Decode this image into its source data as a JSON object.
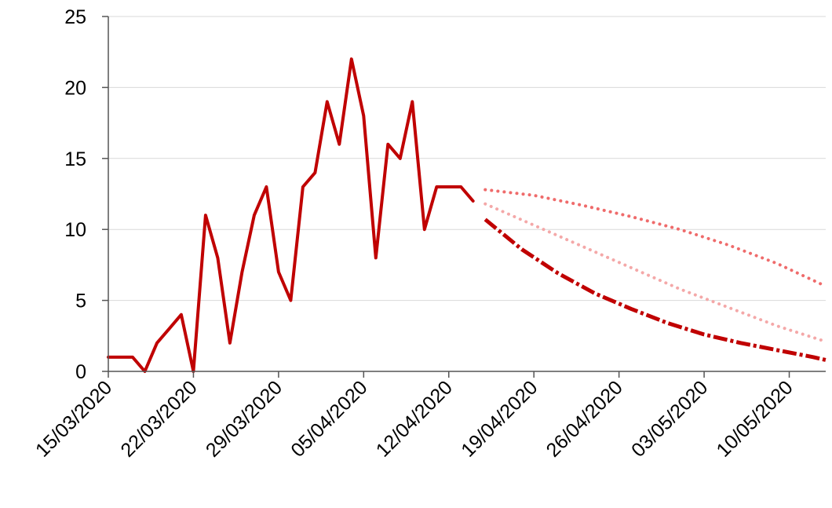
{
  "chart_data": {
    "type": "line",
    "title": "",
    "xlabel": "",
    "ylabel": "",
    "x_axis": {
      "min": "15/03/2020",
      "max": "13/05/2020",
      "tick_labels": [
        "15/03/2020",
        "22/03/2020",
        "29/03/2020",
        "05/04/2020",
        "12/04/2020",
        "19/04/2020",
        "26/04/2020",
        "03/05/2020",
        "10/05/2020"
      ]
    },
    "ylim": [
      0,
      25
    ],
    "y_ticks": [
      0,
      5,
      10,
      15,
      20,
      25
    ],
    "grid": true,
    "legend": "none",
    "colors": {
      "observed": "#c00000",
      "projection_low": "#c00000",
      "projection_mid": "#f4a8a8",
      "projection_high": "#ef6b6b",
      "gridline": "#d9d9d9",
      "axis": "#555555"
    },
    "series": [
      {
        "style": "solid",
        "color": "#c00000",
        "x": [
          "15/03/2020",
          "16/03/2020",
          "17/03/2020",
          "18/03/2020",
          "19/03/2020",
          "20/03/2020",
          "21/03/2020",
          "22/03/2020",
          "23/03/2020",
          "24/03/2020",
          "25/03/2020",
          "26/03/2020",
          "27/03/2020",
          "28/03/2020",
          "29/03/2020",
          "30/03/2020",
          "31/03/2020",
          "01/04/2020",
          "02/04/2020",
          "03/04/2020",
          "04/04/2020",
          "05/04/2020",
          "06/04/2020",
          "07/04/2020",
          "08/04/2020",
          "09/04/2020",
          "10/04/2020",
          "11/04/2020",
          "12/04/2020",
          "13/04/2020",
          "14/04/2020"
        ],
        "y": [
          1,
          1,
          1,
          0,
          2,
          3,
          4,
          0,
          11,
          8,
          2,
          7,
          11,
          13,
          7,
          5,
          13,
          14,
          19,
          16,
          22,
          18,
          8,
          16,
          15,
          19,
          10,
          13,
          13,
          13,
          12
        ]
      },
      {
        "style": "dashed",
        "color": "#c00000",
        "x": [
          "15/04/2020",
          "18/04/2020",
          "21/04/2020",
          "24/04/2020",
          "27/04/2020",
          "30/04/2020",
          "03/05/2020",
          "06/05/2020",
          "09/05/2020",
          "12/05/2020",
          "13/05/2020"
        ],
        "y": [
          10.7,
          8.6,
          6.9,
          5.5,
          4.4,
          3.4,
          2.6,
          2.0,
          1.5,
          1.0,
          0.8
        ]
      },
      {
        "style": "dotted",
        "color": "#f4a8a8",
        "x": [
          "15/04/2020",
          "19/04/2020",
          "23/04/2020",
          "27/04/2020",
          "01/05/2020",
          "05/05/2020",
          "09/05/2020",
          "13/05/2020"
        ],
        "y": [
          11.8,
          10.3,
          8.8,
          7.3,
          5.8,
          4.5,
          3.2,
          2.1
        ]
      },
      {
        "style": "dotted",
        "color": "#ef6b6b",
        "x": [
          "15/04/2020",
          "19/04/2020",
          "23/04/2020",
          "27/04/2020",
          "01/05/2020",
          "05/05/2020",
          "09/05/2020",
          "13/05/2020"
        ],
        "y": [
          12.8,
          12.4,
          11.7,
          10.9,
          10.0,
          8.9,
          7.6,
          6.0
        ]
      }
    ]
  }
}
